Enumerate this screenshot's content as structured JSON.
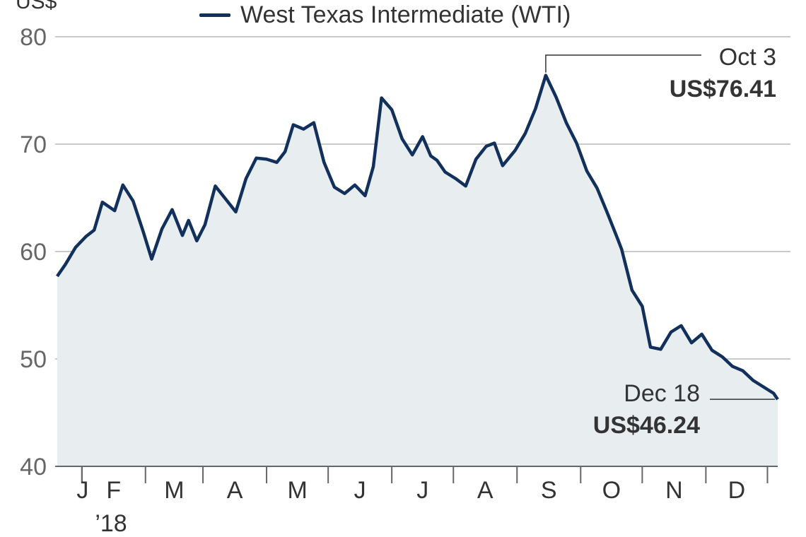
{
  "chart_data": {
    "type": "area",
    "ylabel": "US$",
    "ylim": [
      40,
      80
    ],
    "yticks": [
      "40",
      "50",
      "60",
      "70",
      "80"
    ],
    "grid": true,
    "legend_position": "top",
    "series": [
      {
        "name": "West Texas Intermediate (WTI)",
        "color": "#12305c",
        "fill": "#e8edf0",
        "x": [
          1,
          5,
          10,
          15,
          19,
          23,
          29,
          33,
          38,
          43,
          47,
          52,
          57,
          62,
          65,
          69,
          73,
          78,
          83,
          88,
          93,
          98,
          103,
          108,
          112,
          116,
          121,
          126,
          131,
          136,
          141,
          146,
          151,
          155,
          159,
          164,
          169,
          174,
          179,
          183,
          186,
          190,
          195,
          200,
          205,
          210,
          214,
          218,
          224,
          229,
          234,
          239,
          244,
          249,
          254,
          259,
          264,
          269,
          274,
          276,
          281,
          286,
          290,
          295,
          300,
          305,
          310,
          315,
          320,
          325,
          330,
          335,
          340,
          345,
          350,
          352
        ],
        "values": [
          57.7,
          58.8,
          60.4,
          61.4,
          62.0,
          64.6,
          63.8,
          66.2,
          64.7,
          61.8,
          59.3,
          62.1,
          63.9,
          61.5,
          62.9,
          61.0,
          62.5,
          66.1,
          64.9,
          63.7,
          66.8,
          68.7,
          68.6,
          68.3,
          69.3,
          71.8,
          71.4,
          72.0,
          68.3,
          66.0,
          65.4,
          66.2,
          65.2,
          67.9,
          74.3,
          73.2,
          70.5,
          69.0,
          70.7,
          68.9,
          68.5,
          67.4,
          66.8,
          66.1,
          68.6,
          69.8,
          70.1,
          68.0,
          69.4,
          71.0,
          73.3,
          76.41,
          74.4,
          72.0,
          70.1,
          67.5,
          65.9,
          63.6,
          61.2,
          60.2,
          56.4,
          54.9,
          51.1,
          50.9,
          52.5,
          53.1,
          51.5,
          52.3,
          50.8,
          50.2,
          49.3,
          48.9,
          48.0,
          47.4,
          46.8,
          46.24
        ]
      }
    ],
    "x_ticks": [
      "J",
      "F",
      "M",
      "A",
      "M",
      "J",
      "J",
      "A",
      "S",
      "O",
      "N",
      "D"
    ],
    "x_year_label": "’18",
    "annotations": [
      {
        "date": "Oct 3",
        "value": "US$76.41"
      },
      {
        "date": "Dec 18",
        "value": "US$46.24"
      }
    ]
  }
}
